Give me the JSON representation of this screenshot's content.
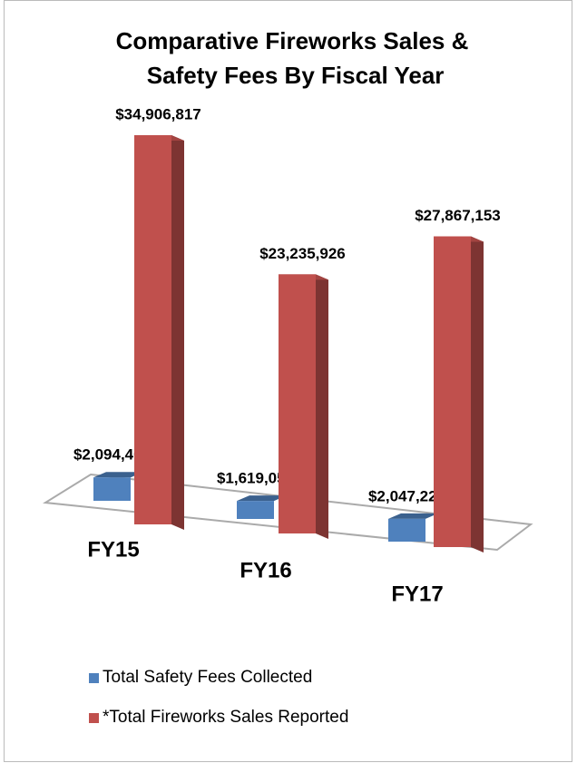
{
  "chart_data": {
    "type": "bar3d",
    "title": "Comparative Fireworks Sales & Safety Fees By Fiscal Year",
    "categories": [
      "FY15",
      "FY16",
      "FY17"
    ],
    "series": [
      {
        "name": "Total Safety Fees Collected",
        "color": "#4f81bd",
        "values": [
          2094409,
          1619054,
          2047225
        ],
        "value_labels": [
          "$2,094,409",
          "$1,619,054",
          "$2,047,225"
        ]
      },
      {
        "name": "*Total Fireworks Sales Reported",
        "color": "#c0504d",
        "values": [
          34906817,
          23235926,
          27867153
        ],
        "value_labels": [
          "$34,906,817",
          "$23,235,926",
          "$27,867,153"
        ]
      }
    ]
  }
}
